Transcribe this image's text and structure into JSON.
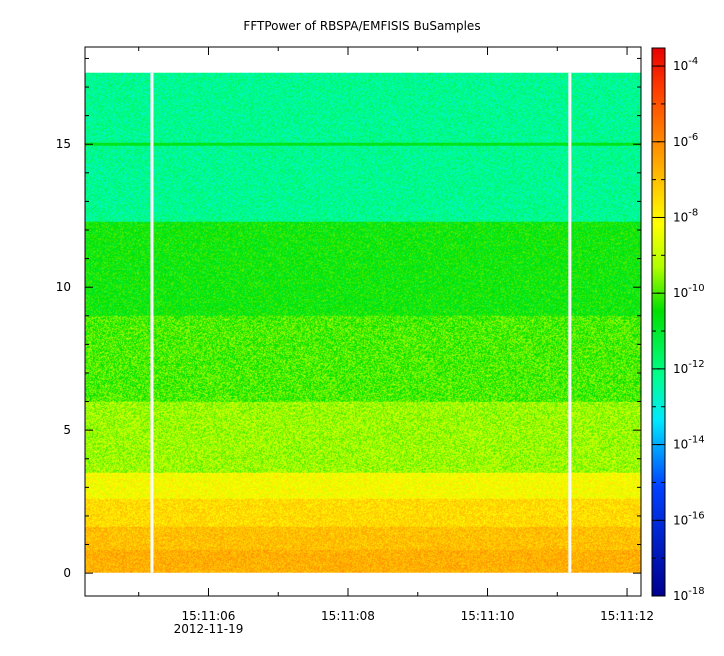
{
  "chart_data": {
    "type": "heatmap",
    "title": "FFTPower of RBSPA/EMFISIS  BuSamples",
    "xlabel": "",
    "ylabel": "",
    "x": {
      "ticks": [
        {
          "time": "15:11:06",
          "date": "2012-11-19"
        },
        {
          "time": "15:11:08"
        },
        {
          "time": "15:11:10"
        },
        {
          "time": "15:11:12"
        }
      ],
      "range_seconds_after_15_11_00": [
        4.23,
        12.2
      ],
      "minor_tick_step_seconds": 1
    },
    "y": {
      "ticks": [
        "0",
        "5",
        "10",
        "15"
      ],
      "range": [
        -0.8,
        18.4
      ],
      "data_extent": [
        0,
        17.5
      ]
    },
    "colorbar": {
      "scale": "log",
      "range": [
        1e-18,
        0.0003
      ],
      "ticks": [
        {
          "base": "10",
          "exp": "-4"
        },
        {
          "base": "10",
          "exp": "-6"
        },
        {
          "base": "10",
          "exp": "-8"
        },
        {
          "base": "10",
          "exp": "-10"
        },
        {
          "base": "10",
          "exp": "-12"
        },
        {
          "base": "10",
          "exp": "-14"
        },
        {
          "base": "10",
          "exp": "-16"
        },
        {
          "base": "10",
          "exp": "-18"
        }
      ]
    },
    "data_gaps_seconds_after_15_11_00": [
      5.19,
      11.18
    ],
    "bands": [
      {
        "freq_from": 0,
        "freq_to": 0.8,
        "log10_power": -6.7
      },
      {
        "freq_from": 0.8,
        "freq_to": 1.6,
        "log10_power": -7.0
      },
      {
        "freq_from": 1.6,
        "freq_to": 2.6,
        "log10_power": -7.5
      },
      {
        "freq_from": 2.6,
        "freq_to": 3.5,
        "log10_power": -8.2
      },
      {
        "freq_from": 3.5,
        "freq_to": 6.0,
        "log10_power": -9.4
      },
      {
        "freq_from": 6.0,
        "freq_to": 9.0,
        "log10_power": -10.0
      },
      {
        "freq_from": 9.0,
        "freq_to": 12.3,
        "log10_power": -10.5
      },
      {
        "freq_from": 12.3,
        "freq_to": 17.5,
        "log10_power": -12.2
      }
    ],
    "line_feature": {
      "freq": 15.0,
      "log10_power": -10.8
    }
  }
}
